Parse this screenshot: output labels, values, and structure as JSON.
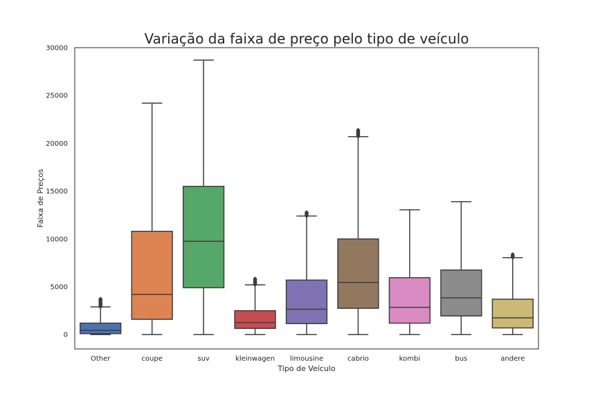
{
  "chart_data": {
    "type": "box",
    "title": "Variação da faixa de preço pelo tipo de veículo",
    "xlabel": "Tipo de Veículo",
    "ylabel": "Faixa de Preços",
    "ylim": [
      -1500,
      30000
    ],
    "yticks": [
      0,
      5000,
      10000,
      15000,
      20000,
      25000,
      30000
    ],
    "grid": false,
    "categories": [
      "Other",
      "coupe",
      "suv",
      "kleinwagen",
      "limousine",
      "cabrio",
      "kombi",
      "bus",
      "andere"
    ],
    "boxes": [
      {
        "category": "Other",
        "color": "#4c72b0",
        "whisker_low": 0,
        "q1": 100,
        "median": 450,
        "q3": 1200,
        "whisker_high": 2900,
        "outliers_from": 2900,
        "outliers_to": 3750
      },
      {
        "category": "coupe",
        "color": "#dd8452",
        "whisker_low": 0,
        "q1": 1600,
        "median": 4200,
        "q3": 10800,
        "whisker_high": 24200,
        "outliers_from": null,
        "outliers_to": null
      },
      {
        "category": "suv",
        "color": "#55a868",
        "whisker_low": 0,
        "q1": 4900,
        "median": 9750,
        "q3": 15500,
        "whisker_high": 28700,
        "outliers_from": null,
        "outliers_to": null
      },
      {
        "category": "kleinwagen",
        "color": "#c44e52",
        "whisker_low": 0,
        "q1": 650,
        "median": 1250,
        "q3": 2500,
        "whisker_high": 5200,
        "outliers_from": 5200,
        "outliers_to": 5850
      },
      {
        "category": "limousine",
        "color": "#8172b3",
        "whisker_low": 0,
        "q1": 1150,
        "median": 2650,
        "q3": 5700,
        "whisker_high": 12400,
        "outliers_from": 12400,
        "outliers_to": 12800
      },
      {
        "category": "cabrio",
        "color": "#937860",
        "whisker_low": 0,
        "q1": 2750,
        "median": 5450,
        "q3": 10000,
        "whisker_high": 20700,
        "outliers_from": 20700,
        "outliers_to": 21400
      },
      {
        "category": "kombi",
        "color": "#da8bc3",
        "whisker_low": 0,
        "q1": 1200,
        "median": 2850,
        "q3": 5950,
        "whisker_high": 13050,
        "outliers_from": null,
        "outliers_to": null
      },
      {
        "category": "bus",
        "color": "#8c8c8c",
        "whisker_low": 0,
        "q1": 1950,
        "median": 3850,
        "q3": 6750,
        "whisker_high": 13900,
        "outliers_from": null,
        "outliers_to": null
      },
      {
        "category": "andere",
        "color": "#ccb974",
        "whisker_low": 0,
        "q1": 700,
        "median": 1750,
        "q3": 3700,
        "whisker_high": 8050,
        "outliers_from": 8050,
        "outliers_to": 8400
      }
    ]
  }
}
